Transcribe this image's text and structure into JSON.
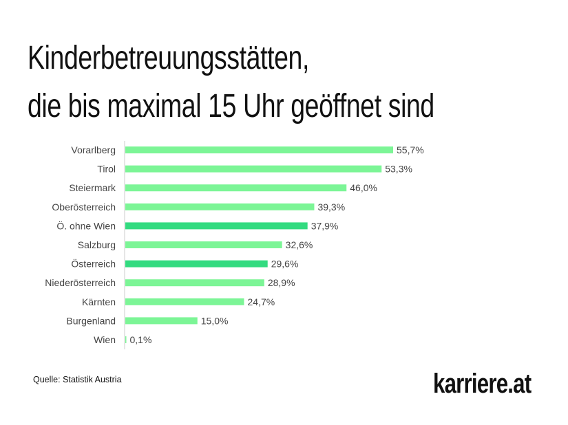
{
  "title_lines": [
    "Kinderbetreuungsstätten,",
    "die bis maximal 15 Uhr geöffnet sind"
  ],
  "source": "Quelle: Statistik Austria",
  "logo": "karriere.at",
  "colors": {
    "bar": "#7cf596",
    "highlight": "#33db80",
    "text": "#444444",
    "axis": "#cccccc"
  },
  "chart_data": {
    "type": "bar",
    "orientation": "horizontal",
    "categories": [
      "Vorarlberg",
      "Tirol",
      "Steiermark",
      "Oberösterreich",
      "Ö. ohne Wien",
      "Salzburg",
      "Österreich",
      "Niederösterreich",
      "Kärnten",
      "Burgenland",
      "Wien"
    ],
    "values": [
      55.7,
      53.3,
      46.0,
      39.3,
      37.9,
      32.6,
      29.6,
      28.9,
      24.7,
      15.0,
      0.1
    ],
    "data_labels": [
      "55,7%",
      "53,3%",
      "46,0%",
      "39,3%",
      "37,9%",
      "32,6%",
      "29,6%",
      "28,9%",
      "24,7%",
      "15,0%",
      "0,1%"
    ],
    "highlighted": [
      "Ö. ohne Wien",
      "Österreich"
    ],
    "unit": "%",
    "grid": false
  }
}
